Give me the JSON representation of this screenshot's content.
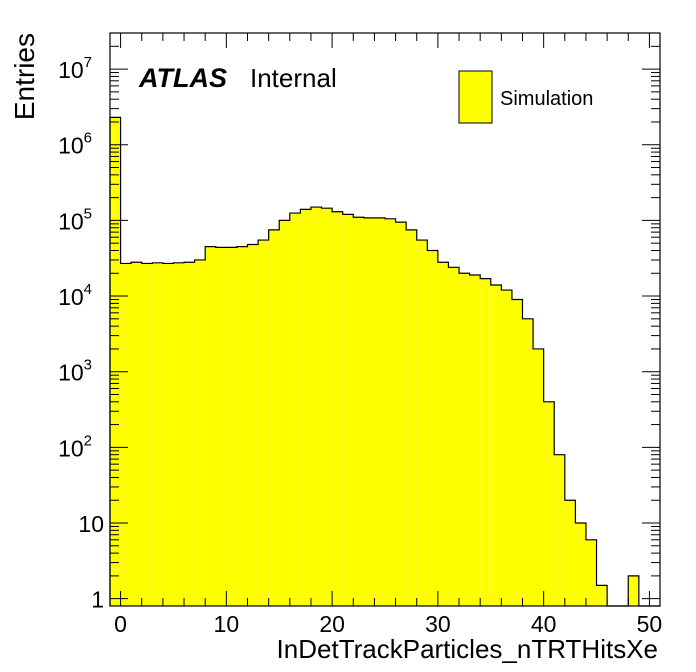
{
  "chart_data": {
    "type": "bar",
    "title": "",
    "xlabel": "InDetTrackParticles_nTRTHitsXe",
    "ylabel": "Entries",
    "xlim": [
      -1,
      51
    ],
    "ylim": [
      0.8,
      30000000
    ],
    "yscale": "log",
    "bin_width": 1,
    "x_ticks": [
      "0",
      "10",
      "20",
      "30",
      "40",
      "50"
    ],
    "y_ticks": [
      {
        "base": "1",
        "exp": ""
      },
      {
        "base": "10",
        "exp": ""
      },
      {
        "base": "10",
        "exp": "2"
      },
      {
        "base": "10",
        "exp": "3"
      },
      {
        "base": "10",
        "exp": "4"
      },
      {
        "base": "10",
        "exp": "5"
      },
      {
        "base": "10",
        "exp": "6"
      },
      {
        "base": "10",
        "exp": "7"
      }
    ],
    "series": [
      {
        "name": "Simulation",
        "color": "#ffff00",
        "edge_color": "#000000",
        "x": [
          -1,
          0,
          1,
          2,
          3,
          4,
          5,
          6,
          7,
          8,
          9,
          10,
          11,
          12,
          13,
          14,
          15,
          16,
          17,
          18,
          19,
          20,
          21,
          22,
          23,
          24,
          25,
          26,
          27,
          28,
          29,
          30,
          31,
          32,
          33,
          34,
          35,
          36,
          37,
          38,
          39,
          40,
          41,
          42,
          43,
          44,
          45,
          46,
          47,
          48,
          49,
          50
        ],
        "values": [
          2300000,
          27000,
          28000,
          27000,
          27500,
          27000,
          27500,
          28000,
          30000,
          45000,
          44000,
          44000,
          45000,
          48000,
          55000,
          75000,
          100000,
          125000,
          140000,
          150000,
          145000,
          130000,
          120000,
          110000,
          108000,
          108000,
          105000,
          95000,
          75000,
          55000,
          40000,
          28000,
          24000,
          20000,
          19000,
          17000,
          14000,
          12000,
          9000,
          5000,
          2000,
          400,
          80,
          20,
          10,
          6,
          1.5,
          0,
          0,
          2,
          0,
          0
        ]
      }
    ]
  },
  "labels": {
    "atlas": "ATLAS",
    "internal": "Internal"
  },
  "legend": {
    "placement": "top-right",
    "entry": "Simulation"
  }
}
